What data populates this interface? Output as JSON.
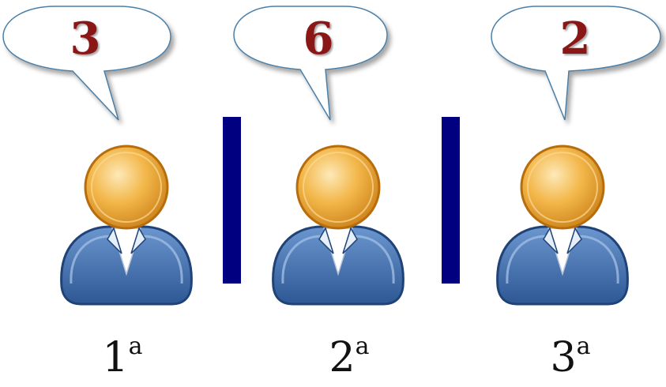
{
  "colors": {
    "bubble_fill": "#ffffff",
    "bubble_stroke": "#4a7fa8",
    "number_color": "#8b1414",
    "divider_color": "#000080",
    "head_color": "#f0a030",
    "body_color": "#3d6fb0",
    "label_color": "#111111"
  },
  "icons": {
    "person": "user-icon",
    "bubble": "speech-bubble"
  },
  "people": [
    {
      "number": "3",
      "label": "1",
      "superscript": "a"
    },
    {
      "number": "6",
      "label": "2",
      "superscript": "a"
    },
    {
      "number": "2",
      "label": "3",
      "superscript": "a"
    }
  ]
}
